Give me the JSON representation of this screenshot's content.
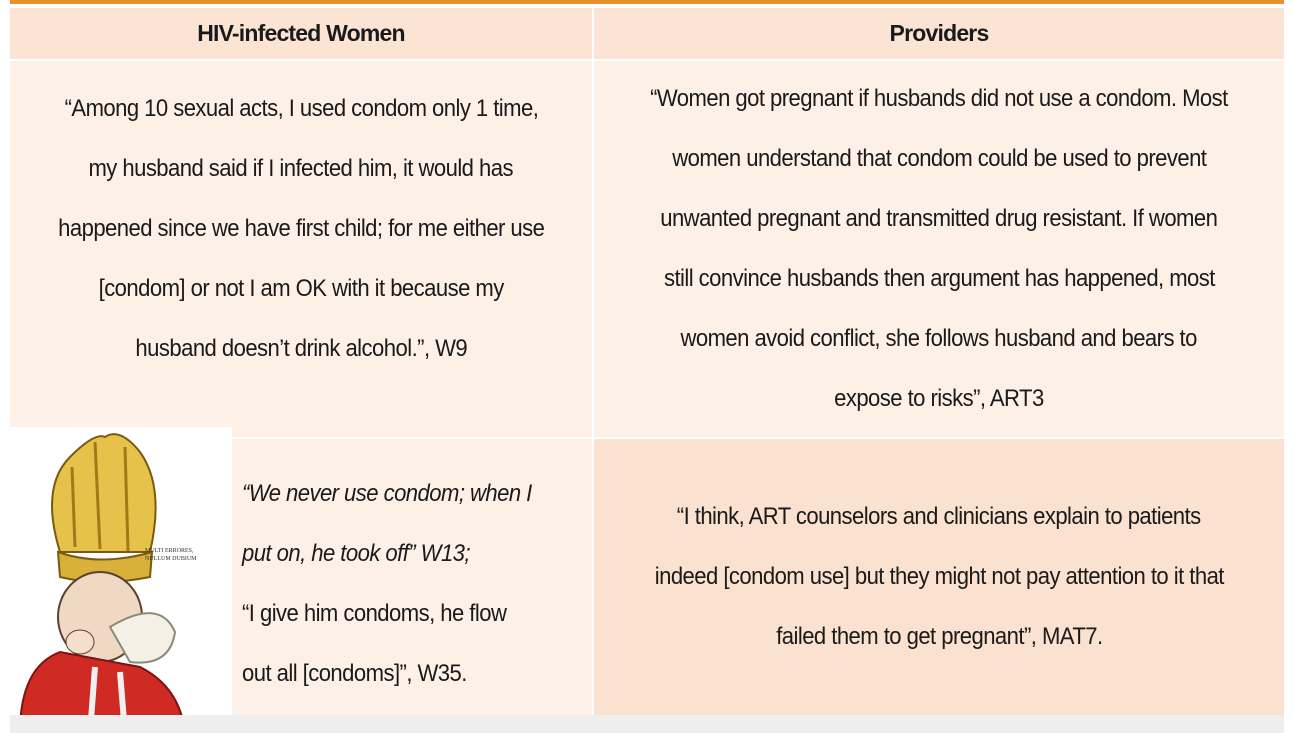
{
  "table": {
    "headers": [
      "HIV-infected Women",
      "Providers"
    ],
    "rows": [
      [
        {
          "lines": [
            "“Among 10 sexual acts, I used condom only 1 time,",
            "my husband said if I infected him, it would has",
            "happened since we have first child; for me either use",
            "[condom] or not I am OK with it because my",
            "husband doesn’t drink alcohol.”, W9"
          ]
        },
        {
          "lines": [
            "“Women got pregnant if husbands did not use a condom. Most",
            "women understand that condom could be used to prevent",
            "unwanted pregnant and transmitted drug resistant. If women",
            "still convince husbands then argument has happened, most",
            "women avoid conflict, she follows husband and bears to",
            "expose to risks”, ART3"
          ]
        }
      ],
      [
        {
          "image_caption": [
            "MULTI ERRORES,",
            "NULLUM DUBIUM"
          ],
          "italic_lines": [
            "“We never use condom; when I",
            "put on, he took off” W13;"
          ],
          "lines": [
            "“I give him condoms, he flow",
            "out all [condoms]”, W35."
          ]
        },
        {
          "lines": [
            "“I think, ART counselors and clinicians explain to patients",
            "indeed [condom use] but they might not pay attention to it that",
            "failed them to get pregnant”, MAT7."
          ]
        }
      ]
    ]
  }
}
